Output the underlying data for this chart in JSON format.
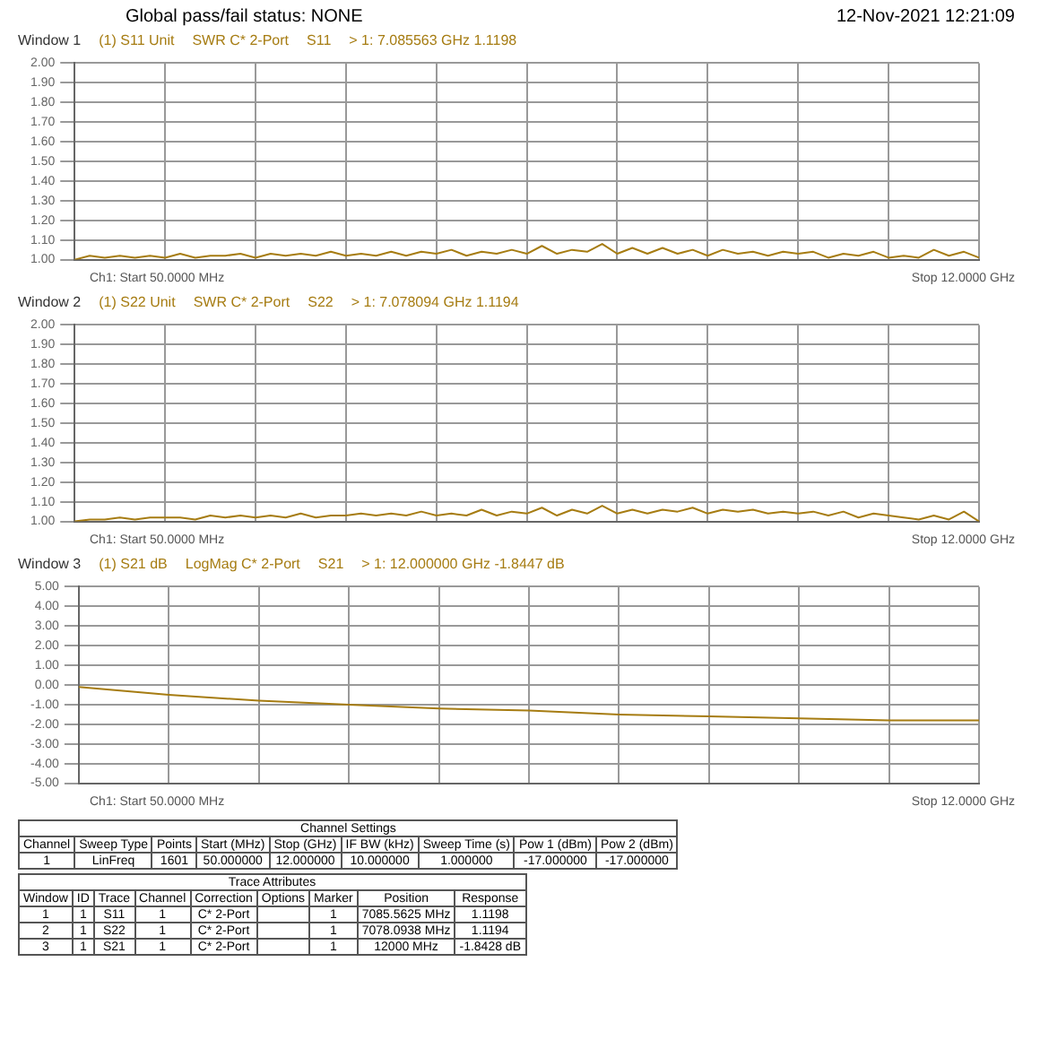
{
  "chart_data": [
    {
      "type": "line",
      "title": "Global pass/fail status: NONE",
      "subtitle": "12-Nov-2021 12:21:09",
      "xlabel": "Ch1: Start 50.0000 MHz",
      "annotations": [
        "Window 1",
        "(1) S11 Unit",
        "SWR C* 2-Port",
        "S11",
        "> 1:  7.085563 GHz  1.1198",
        "Stop 12.0000 GHz"
      ],
      "categories": [
        null,
        null,
        null,
        null,
        null,
        null,
        null,
        null,
        null,
        null,
        null,
        null,
        null,
        null,
        null,
        null,
        null,
        null,
        null,
        null,
        null,
        null,
        null,
        null,
        null,
        null,
        null,
        null,
        null,
        null,
        null,
        null,
        null,
        null,
        null,
        null,
        null,
        null,
        null,
        null,
        null,
        null,
        null,
        null,
        null,
        null,
        null,
        null,
        null,
        null,
        null,
        null,
        null,
        null,
        null,
        null,
        null,
        null,
        null,
        null,
        null
      ],
      "values": [
        1.0,
        1.02,
        1.01,
        1.02,
        1.01,
        1.02,
        1.01,
        1.03,
        1.01,
        1.02,
        1.02,
        1.03,
        1.01,
        1.03,
        1.02,
        1.03,
        1.02,
        1.04,
        1.02,
        1.03,
        1.02,
        1.04,
        1.02,
        1.04,
        1.03,
        1.05,
        1.02,
        1.04,
        1.03,
        1.05,
        1.03,
        1.07,
        1.03,
        1.05,
        1.04,
        1.08,
        1.03,
        1.06,
        1.03,
        1.06,
        1.03,
        1.05,
        1.02,
        1.05,
        1.03,
        1.04,
        1.02,
        1.04,
        1.03,
        1.04,
        1.01,
        1.03,
        1.02,
        1.04,
        1.01,
        1.02,
        1.01,
        1.05,
        1.02,
        1.04,
        1.01
      ],
      "color": "#a67c12",
      "ylim": [
        1,
        2
      ],
      "yticks": [
        {
          "value": 1,
          "label": "1.00"
        },
        {
          "value": 1.1,
          "label": "1.10"
        },
        {
          "value": 1.2,
          "label": "1.20"
        },
        {
          "value": 1.3,
          "label": "1.30"
        },
        {
          "value": 1.4,
          "label": "1.40"
        },
        {
          "value": 1.5,
          "label": "1.50"
        },
        {
          "value": 1.6,
          "label": "1.60"
        },
        {
          "value": 1.7,
          "label": "1.70"
        },
        {
          "value": 1.8,
          "label": "1.80"
        },
        {
          "value": 1.9,
          "label": "1.90"
        },
        {
          "value": 2,
          "label": "2.00"
        }
      ],
      "grid": true,
      "legend": false,
      "marker": "none",
      "line_style": "solid"
    },
    {
      "type": "line",
      "xlabel": "Ch1: Start 50.0000 MHz",
      "annotations": [
        "Window 2",
        "(1) S22 Unit",
        "SWR C* 2-Port",
        "S22",
        "> 1:  7.078094 GHz  1.1194",
        "Stop 12.0000 GHz"
      ],
      "categories": [
        null,
        null,
        null,
        null,
        null,
        null,
        null,
        null,
        null,
        null,
        null,
        null,
        null,
        null,
        null,
        null,
        null,
        null,
        null,
        null,
        null,
        null,
        null,
        null,
        null,
        null,
        null,
        null,
        null,
        null,
        null,
        null,
        null,
        null,
        null,
        null,
        null,
        null,
        null,
        null,
        null,
        null,
        null,
        null,
        null,
        null,
        null,
        null,
        null,
        null,
        null,
        null,
        null,
        null,
        null,
        null,
        null,
        null,
        null,
        null,
        null
      ],
      "values": [
        1.0,
        1.01,
        1.01,
        1.02,
        1.01,
        1.02,
        1.02,
        1.02,
        1.01,
        1.03,
        1.02,
        1.03,
        1.02,
        1.03,
        1.02,
        1.04,
        1.02,
        1.03,
        1.03,
        1.04,
        1.03,
        1.04,
        1.03,
        1.05,
        1.03,
        1.04,
        1.03,
        1.06,
        1.03,
        1.05,
        1.04,
        1.07,
        1.03,
        1.06,
        1.04,
        1.08,
        1.04,
        1.06,
        1.04,
        1.06,
        1.05,
        1.07,
        1.04,
        1.06,
        1.05,
        1.06,
        1.04,
        1.05,
        1.04,
        1.05,
        1.03,
        1.05,
        1.02,
        1.04,
        1.03,
        1.02,
        1.01,
        1.03,
        1.01,
        1.05,
        1.0
      ],
      "color": "#a67c12",
      "ylim": [
        1,
        2
      ],
      "yticks": [
        {
          "value": 1,
          "label": "1.00"
        },
        {
          "value": 1.1,
          "label": "1.10"
        },
        {
          "value": 1.2,
          "label": "1.20"
        },
        {
          "value": 1.3,
          "label": "1.30"
        },
        {
          "value": 1.4,
          "label": "1.40"
        },
        {
          "value": 1.5,
          "label": "1.50"
        },
        {
          "value": 1.6,
          "label": "1.60"
        },
        {
          "value": 1.7,
          "label": "1.70"
        },
        {
          "value": 1.8,
          "label": "1.80"
        },
        {
          "value": 1.9,
          "label": "1.90"
        },
        {
          "value": 2,
          "label": "2.00"
        }
      ],
      "grid": true,
      "legend": false,
      "marker": "none",
      "line_style": "solid"
    },
    {
      "type": "line",
      "xlabel": "Ch1: Start 50.0000 MHz",
      "annotations": [
        "Window 3",
        "(1) S21 dB",
        "LogMag C* 2-Port",
        "S21",
        "> 1:  12.000000 GHz  -1.8447 dB",
        "Stop 12.0000 GHz"
      ],
      "categories": [
        null,
        null,
        null,
        null,
        null,
        null,
        null,
        null,
        null,
        null,
        null
      ],
      "values": [
        -0.1,
        -0.5,
        -0.8,
        -1.0,
        -1.2,
        -1.3,
        -1.5,
        -1.6,
        -1.7,
        -1.8,
        -1.8
      ],
      "color": "#a67c12",
      "ylim": [
        -5,
        5
      ],
      "yticks": [
        {
          "value": -5,
          "label": "-5.00"
        },
        {
          "value": -4,
          "label": "-4.00"
        },
        {
          "value": -3,
          "label": "-3.00"
        },
        {
          "value": -2,
          "label": "-2.00"
        },
        {
          "value": -1,
          "label": "-1.00"
        },
        {
          "value": 0,
          "label": "0.00"
        },
        {
          "value": 1,
          "label": "1.00"
        },
        {
          "value": 2,
          "label": "2.00"
        },
        {
          "value": 3,
          "label": "3.00"
        },
        {
          "value": 4,
          "label": "4.00"
        },
        {
          "value": 5,
          "label": "5.00"
        }
      ],
      "grid": true,
      "legend": false,
      "marker": "none",
      "line_style": "solid"
    },
    {
      "type": "other",
      "annotations": [
        "Channel Settings",
        "Channel\tSweep Type\tPoints\tStart (MHz)\tStop (GHz)\tIF BW (kHz)\tSweep Time (s)\tPow 1 (dBm)\tPow 2 (dBm)",
        "1\tLinFreq\t1601\t50.000000\t12.000000\t10.000000\t1.000000\t-17.000000\t-17.000000",
        "Trace Attributes",
        "Window\tID\tTrace\tChannel\tCorrection\tOptions\tMarker\tPosition\tResponse",
        "1\t1\tS11\t1\tC* 2-Port\t\t1\t7085.5625 MHz\t1.1198",
        "2\t1\tS22\t1\tC* 2-Port\t\t1\t7078.0938 MHz\t1.1194",
        "3\t1\tS21\t1\tC* 2-Port\t\t1\t12000 MHz\t-1.8428 dB"
      ]
    }
  ]
}
